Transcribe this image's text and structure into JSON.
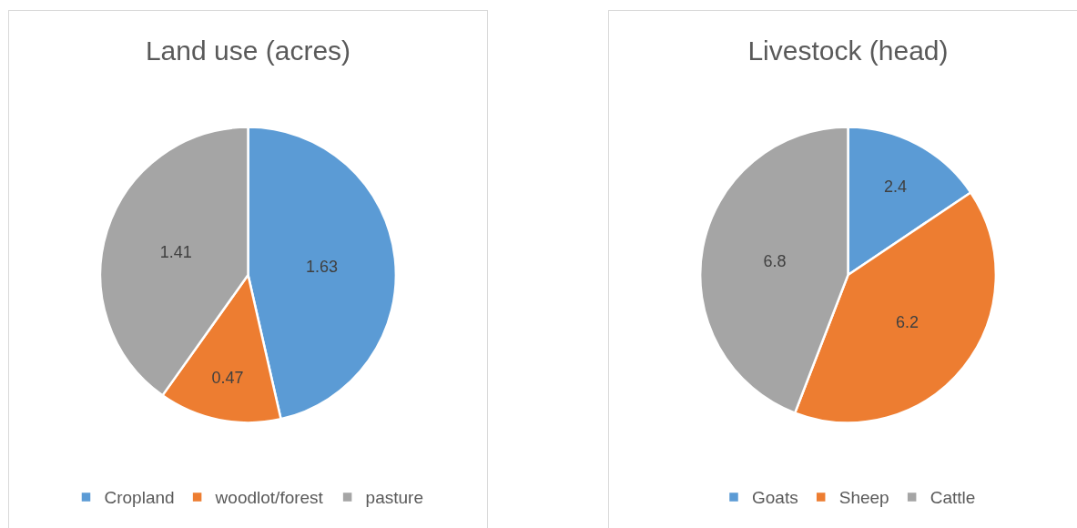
{
  "chart_data": [
    {
      "type": "pie",
      "title": "Land use (acres)",
      "categories": [
        "Cropland",
        "woodlot/forest",
        "pasture"
      ],
      "values": [
        1.63,
        0.47,
        1.41
      ],
      "colors": [
        "#5b9bd5",
        "#ed7d31",
        "#a5a5a5"
      ],
      "data_labels": true,
      "legend": "bottom"
    },
    {
      "type": "pie",
      "title": "Livestock (head)",
      "categories": [
        "Goats",
        "Sheep",
        "Cattle"
      ],
      "values": [
        2.4,
        6.2,
        6.8
      ],
      "colors": [
        "#5b9bd5",
        "#ed7d31",
        "#a5a5a5"
      ],
      "data_labels": true,
      "legend": "bottom"
    }
  ]
}
